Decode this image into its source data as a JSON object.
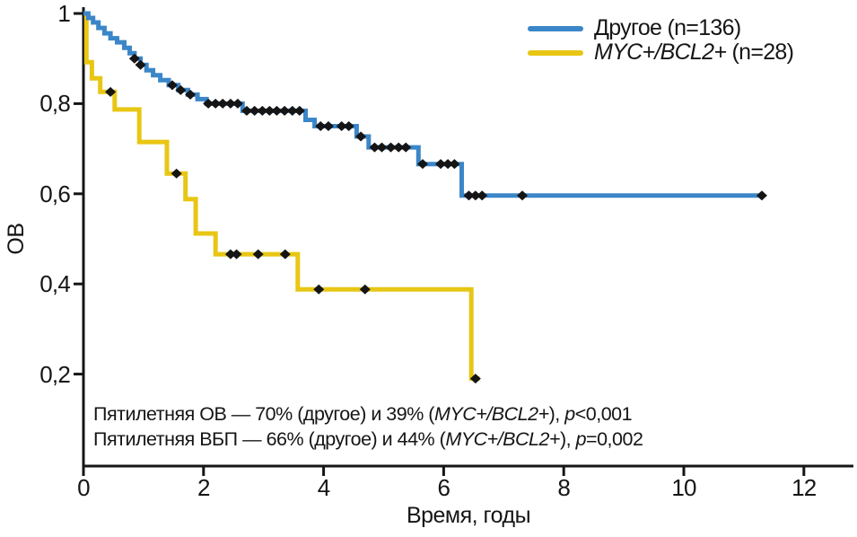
{
  "colors": {
    "axis": "#151515",
    "text": "#151515",
    "censor": "#151515",
    "series_other": "#3b86c8",
    "series_myc_bcl2": "#e8c614",
    "background": "#ffffff"
  },
  "axes": {
    "x_label": "Время, годы",
    "y_label": "ОВ"
  },
  "legend": {
    "position": "top-right",
    "items": [
      {
        "prefix": "Другое",
        "italic": "",
        "suffix": " (n=136)",
        "color": "#3b86c8"
      },
      {
        "prefix": "",
        "italic": "MYC+/BCL2+",
        "suffix": " (n=28)",
        "color": "#e8c614"
      }
    ]
  },
  "annotation": {
    "line1": {
      "pre": "Пятилетняя ОВ — 70% (другое) и 39% (",
      "gene": "MYC+/BCL2+",
      "mid": "), ",
      "p": "p",
      "post": "<0,001"
    },
    "line2": {
      "pre": "Пятилетняя ВБП — 66% (другое) и 44% (",
      "gene": "MYC+/BCL2+",
      "mid": "), ",
      "p": "p",
      "post": "=0,002"
    }
  },
  "chart_data": {
    "type": "line",
    "subtype": "kaplan-meier-step",
    "title": "",
    "xlabel": "Время, годы",
    "ylabel": "ОВ",
    "xlim": [
      0,
      12.8
    ],
    "ylim": [
      0,
      1.0
    ],
    "grid": false,
    "legend_position": "top-right",
    "xticks": [
      "0",
      "2",
      "4",
      "6",
      "8",
      "10",
      "12"
    ],
    "xtick_values": [
      0,
      2,
      4,
      6,
      8,
      10,
      12
    ],
    "yticks": [
      "1",
      "0,8",
      "0,6",
      "0,4",
      "0,2"
    ],
    "ytick_values": [
      1,
      0.8,
      0.6,
      0.4,
      0.2
    ],
    "series": [
      {
        "name": "Другое (n=136)",
        "n": 136,
        "five_year_os": "70%",
        "color": "#3b86c8",
        "end_x": 11.3,
        "points": [
          [
            0,
            1.0
          ],
          [
            0.08,
            0.99
          ],
          [
            0.16,
            0.98
          ],
          [
            0.25,
            0.968
          ],
          [
            0.35,
            0.956
          ],
          [
            0.45,
            0.945
          ],
          [
            0.56,
            0.936
          ],
          [
            0.68,
            0.924
          ],
          [
            0.77,
            0.912
          ],
          [
            0.85,
            0.9
          ],
          [
            0.95,
            0.886
          ],
          [
            1.05,
            0.874
          ],
          [
            1.16,
            0.863
          ],
          [
            1.28,
            0.852
          ],
          [
            1.42,
            0.841
          ],
          [
            1.58,
            0.83
          ],
          [
            1.74,
            0.82
          ],
          [
            1.9,
            0.81
          ],
          [
            2.05,
            0.8
          ],
          [
            2.65,
            0.784
          ],
          [
            3.7,
            0.764
          ],
          [
            3.85,
            0.75
          ],
          [
            4.55,
            0.727
          ],
          [
            4.75,
            0.703
          ],
          [
            5.58,
            0.666
          ],
          [
            6.3,
            0.596
          ]
        ],
        "censor_marks": [
          [
            0.85,
            0.9
          ],
          [
            0.95,
            0.886
          ],
          [
            1.48,
            0.841
          ],
          [
            1.62,
            0.83
          ],
          [
            1.78,
            0.82
          ],
          [
            2.08,
            0.8
          ],
          [
            2.2,
            0.8
          ],
          [
            2.32,
            0.8
          ],
          [
            2.45,
            0.8
          ],
          [
            2.57,
            0.8
          ],
          [
            2.72,
            0.784
          ],
          [
            2.85,
            0.784
          ],
          [
            2.98,
            0.784
          ],
          [
            3.1,
            0.784
          ],
          [
            3.22,
            0.784
          ],
          [
            3.35,
            0.784
          ],
          [
            3.48,
            0.784
          ],
          [
            3.6,
            0.784
          ],
          [
            3.95,
            0.75
          ],
          [
            4.08,
            0.75
          ],
          [
            4.3,
            0.75
          ],
          [
            4.42,
            0.75
          ],
          [
            4.62,
            0.727
          ],
          [
            4.85,
            0.703
          ],
          [
            4.97,
            0.703
          ],
          [
            5.12,
            0.703
          ],
          [
            5.25,
            0.703
          ],
          [
            5.37,
            0.703
          ],
          [
            5.65,
            0.666
          ],
          [
            5.95,
            0.666
          ],
          [
            6.07,
            0.666
          ],
          [
            6.18,
            0.666
          ],
          [
            6.42,
            0.596
          ],
          [
            6.53,
            0.596
          ],
          [
            6.64,
            0.596
          ],
          [
            7.31,
            0.596
          ],
          [
            11.3,
            0.596
          ]
        ]
      },
      {
        "name": "MYC+/BCL2+ (n=28)",
        "n": 28,
        "five_year_os": "39%",
        "color": "#e8c614",
        "end_x": 6.6,
        "points": [
          [
            0,
            1.0
          ],
          [
            0.05,
            0.892
          ],
          [
            0.14,
            0.856
          ],
          [
            0.28,
            0.826
          ],
          [
            0.52,
            0.787
          ],
          [
            0.93,
            0.715
          ],
          [
            1.39,
            0.645
          ],
          [
            1.7,
            0.588
          ],
          [
            1.87,
            0.512
          ],
          [
            2.2,
            0.466
          ],
          [
            3.57,
            0.388
          ],
          [
            6.46,
            0.19
          ]
        ],
        "censor_marks": [
          [
            0.45,
            0.826
          ],
          [
            1.55,
            0.645
          ],
          [
            2.45,
            0.466
          ],
          [
            2.55,
            0.466
          ],
          [
            2.91,
            0.466
          ],
          [
            3.36,
            0.466
          ],
          [
            3.92,
            0.388
          ],
          [
            4.69,
            0.388
          ],
          [
            6.53,
            0.19
          ]
        ]
      }
    ]
  }
}
